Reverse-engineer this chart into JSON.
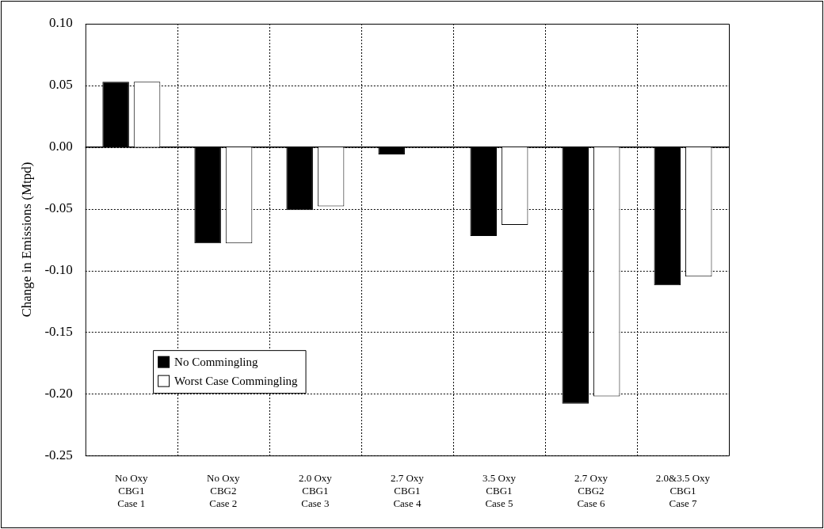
{
  "chart_data": {
    "type": "bar",
    "ylabel": "Change in Emissions (Mtpd)",
    "categories": [
      "No Oxy\nCBG1\nCase 1",
      "No Oxy\nCBG2\nCase 2",
      "2.0 Oxy\nCBG1\nCase 3",
      "2.7 Oxy\nCBG1\nCase 4",
      "3.5 Oxy\nCBG1\nCase 5",
      "2.7 Oxy\nCBG2\nCase 6",
      "2.0&3.5 Oxy\nCBG1\nCase 7"
    ],
    "series": [
      {
        "name": "No Commingling",
        "color": "#000000",
        "values": [
          0.053,
          -0.078,
          -0.051,
          -0.006,
          -0.072,
          -0.208,
          -0.112
        ]
      },
      {
        "name": "Worst Case Commingling",
        "color": "#ffffff",
        "values": [
          0.053,
          -0.078,
          -0.048,
          0,
          -0.063,
          -0.202,
          -0.105
        ]
      }
    ],
    "ylim": [
      -0.25,
      0.1
    ],
    "yticks": [
      {
        "value": -0.25,
        "label": "-0.25"
      },
      {
        "value": -0.2,
        "label": "-0.20"
      },
      {
        "value": -0.15,
        "label": "-0.15"
      },
      {
        "value": -0.1,
        "label": "-0.10"
      },
      {
        "value": -0.05,
        "label": "-0.05"
      },
      {
        "value": 0,
        "label": "0.00"
      },
      {
        "value": 0.05,
        "label": "0.05"
      },
      {
        "value": 0.1,
        "label": "0.10"
      }
    ],
    "grid": true,
    "legend": "bottom left"
  }
}
